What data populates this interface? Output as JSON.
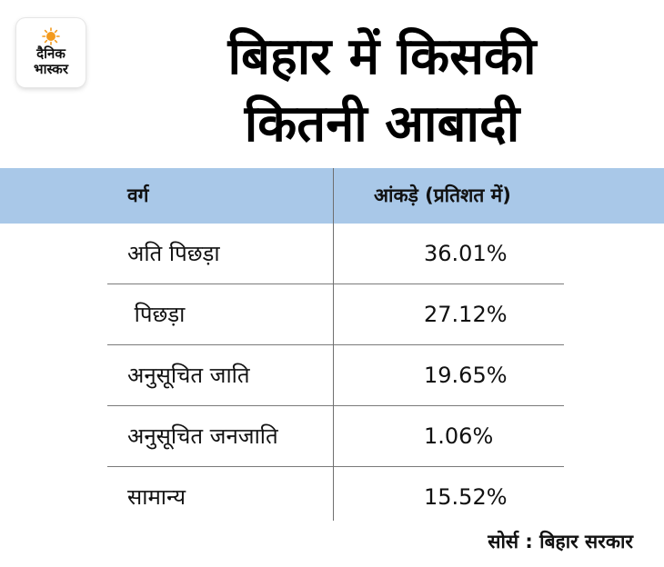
{
  "logo": {
    "line1": "दैनिक",
    "line2": "भास्कर",
    "accent_color": "#f39a1d"
  },
  "title": {
    "line1": "बिहार में किसकी",
    "line2": "कितनी आबादी"
  },
  "chart_data": {
    "type": "table",
    "columns": [
      "वर्ग",
      "आंकड़े (प्रतिशत में)"
    ],
    "rows": [
      {
        "category": "अति पिछड़ा",
        "value": "36.01%"
      },
      {
        "category": " पिछड़ा",
        "value": "27.12%"
      },
      {
        "category": "अनुसूचित जाति",
        "value": "19.65%"
      },
      {
        "category": "अनुसूचित जनजाति",
        "value": "1.06%"
      },
      {
        "category": "सामान्य",
        "value": "15.52%"
      }
    ],
    "header_color": "#a9c8e8"
  },
  "source": "सोर्स : बिहार सरकार"
}
